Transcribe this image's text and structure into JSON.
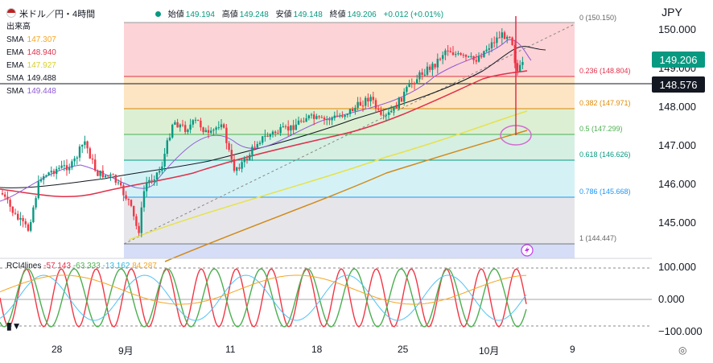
{
  "header": {
    "symbol": "米ドル／円・4時間",
    "open_label": "始値",
    "open": "149.194",
    "high_label": "高値",
    "high": "149.248",
    "low_label": "安値",
    "low": "149.148",
    "close_label": "終値",
    "close": "149.206",
    "change": "+0.012 (+0.01%)",
    "currency": "JPY"
  },
  "legend": [
    {
      "label": "出来高",
      "value": "",
      "color": "#131722"
    },
    {
      "label": "SMA",
      "value": "147.307",
      "color": "#f5a623"
    },
    {
      "label": "EMA",
      "value": "148.940",
      "color": "#e0304a"
    },
    {
      "label": "EMA",
      "value": "147.927",
      "color": "#e6e24a"
    },
    {
      "label": "SMA",
      "value": "149.488",
      "color": "#131722"
    },
    {
      "label": "SMA",
      "value": "149.448",
      "color": "#8e5ad6"
    }
  ],
  "price_axis": [
    "150.000",
    "149.000",
    "148.000",
    "147.000",
    "146.000",
    "145.000"
  ],
  "current_price_tag": "149.206",
  "crosshair_price_tag": "148.576",
  "fib_levels": [
    {
      "label": "0 (150.150)",
      "color": "#888888"
    },
    {
      "label": "0.236 (148.804)",
      "color": "#e0304a"
    },
    {
      "label": "0.382 (147.971)",
      "color": "#e08a00"
    },
    {
      "label": "0.5 (147.299)",
      "color": "#4caf50"
    },
    {
      "label": "0.618 (146.626)",
      "color": "#089981"
    },
    {
      "label": "0.786 (145.668)",
      "color": "#2196f3"
    },
    {
      "label": "1 (144.447)",
      "color": "#777777"
    }
  ],
  "rci": {
    "name": "RCI4lines",
    "values": [
      {
        "v": "-57.143",
        "color": "#e0304a"
      },
      {
        "v": "-63.333",
        "color": "#4caf50"
      },
      {
        "v": "-13.162",
        "color": "#4fc3f7"
      },
      {
        "v": "84.287",
        "color": "#f5a623"
      }
    ],
    "axis": [
      "100.000",
      "0.000",
      "−100.000"
    ]
  },
  "x_axis": [
    "28",
    "9月",
    "11",
    "18",
    "25",
    "10月",
    "9"
  ],
  "icons": {
    "flash": "lightning-icon",
    "settings": "gear-icon",
    "logo": "tv-logo-icon"
  }
}
